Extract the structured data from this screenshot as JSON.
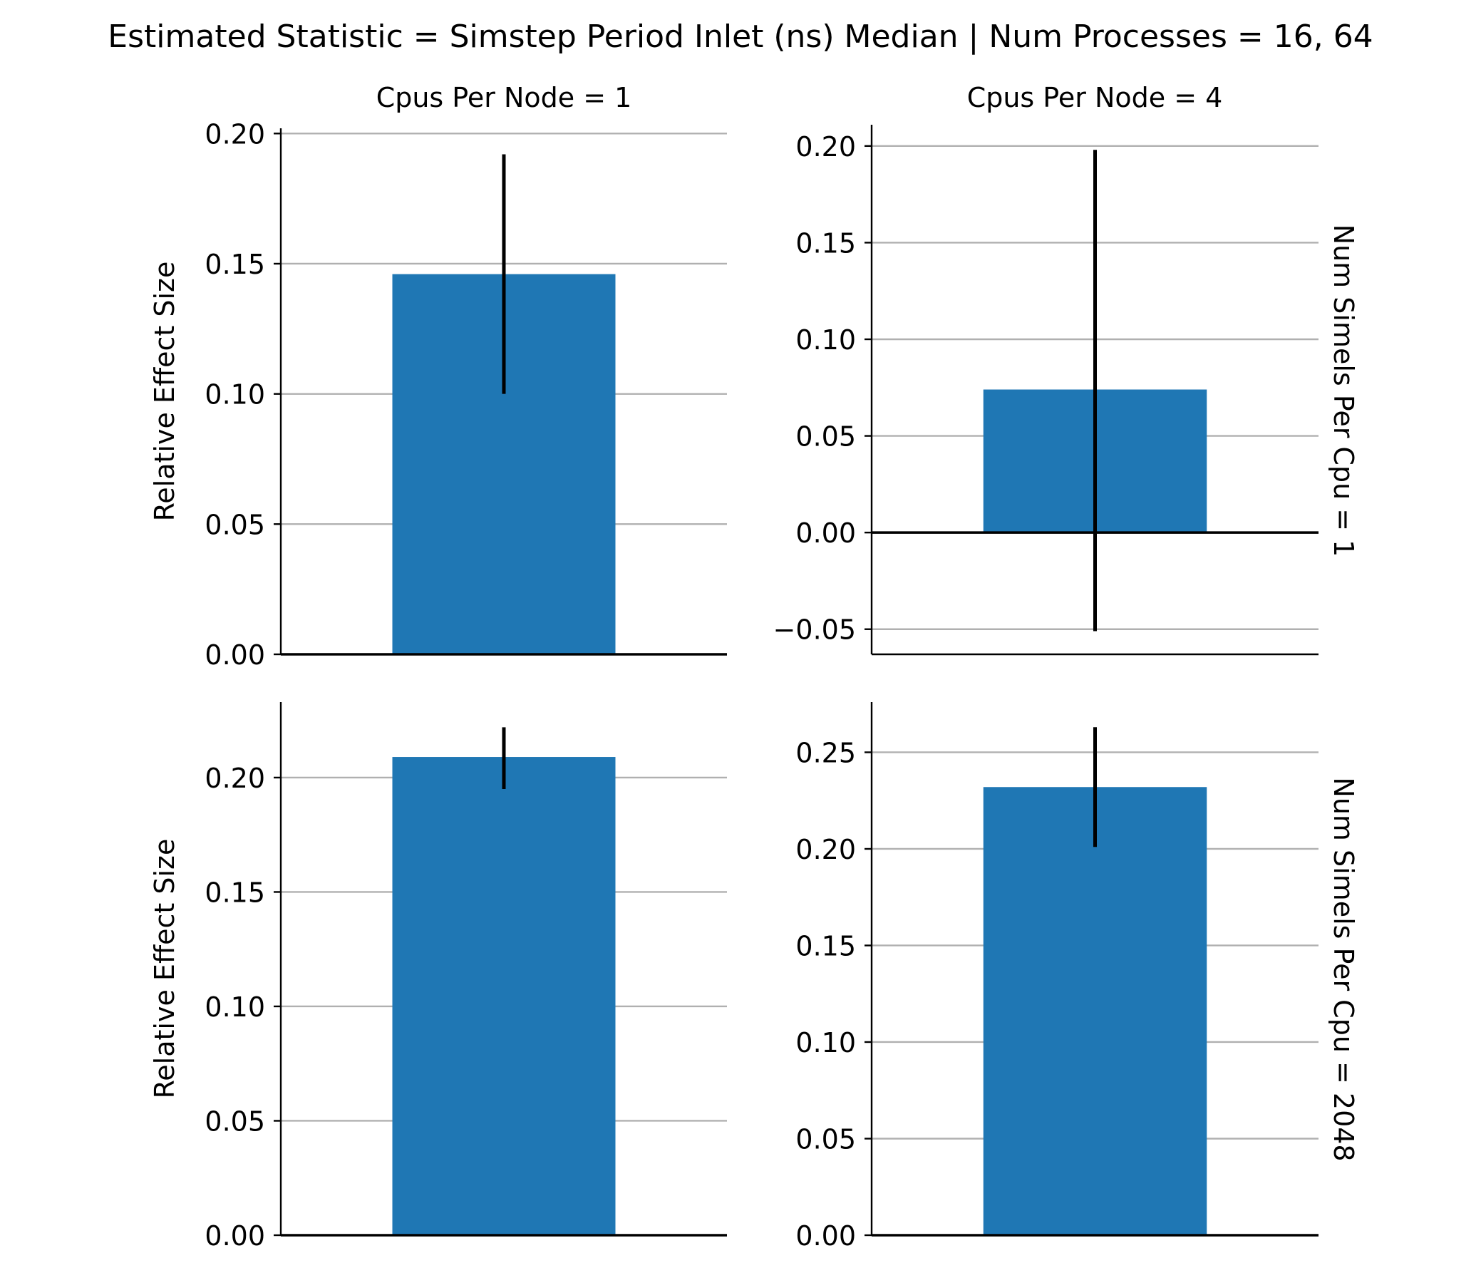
{
  "figure": {
    "title": "Estimated Statistic = Simstep Period Inlet (ns) Median | Num Processes = 16, 64",
    "col_titles": [
      "Cpus Per Node = 1",
      "Cpus Per Node = 4"
    ],
    "row_titles": [
      "Num Simels Per Cpu = 1",
      "Num Simels Per Cpu = 2048"
    ],
    "ylabel": "Relative Effect Size",
    "bar_color": "#1f77b4",
    "grid": true
  },
  "chart_data": [
    {
      "type": "bar",
      "col": "Cpus Per Node = 1",
      "row": "Num Simels Per Cpu = 1",
      "values": [
        0.146
      ],
      "error": [
        [
          0.1,
          0.192
        ]
      ],
      "ylim": [
        0,
        0.202
      ],
      "yticks": [
        0.0,
        0.05,
        0.1,
        0.15,
        0.2
      ],
      "yticklabels": [
        "0.00",
        "0.05",
        "0.10",
        "0.15",
        "0.20"
      ]
    },
    {
      "type": "bar",
      "col": "Cpus Per Node = 4",
      "row": "Num Simels Per Cpu = 1",
      "values": [
        0.074
      ],
      "error": [
        [
          -0.051,
          0.198
        ]
      ],
      "ylim": [
        -0.063,
        0.211
      ],
      "yticks": [
        -0.05,
        0.0,
        0.05,
        0.1,
        0.15,
        0.2
      ],
      "yticklabels": [
        "−0.05",
        "0.00",
        "0.05",
        "0.10",
        "0.15",
        "0.20"
      ]
    },
    {
      "type": "bar",
      "col": "Cpus Per Node = 1",
      "row": "Num Simels Per Cpu = 2048",
      "values": [
        0.209
      ],
      "error": [
        [
          0.195,
          0.222
        ]
      ],
      "ylim": [
        0,
        0.233
      ],
      "yticks": [
        0.0,
        0.05,
        0.1,
        0.15,
        0.2
      ],
      "yticklabels": [
        "0.00",
        "0.05",
        "0.10",
        "0.15",
        "0.20"
      ]
    },
    {
      "type": "bar",
      "col": "Cpus Per Node = 4",
      "row": "Num Simels Per Cpu = 2048",
      "values": [
        0.232
      ],
      "error": [
        [
          0.201,
          0.263
        ]
      ],
      "ylim": [
        0,
        0.276
      ],
      "yticks": [
        0.0,
        0.05,
        0.1,
        0.15,
        0.2,
        0.25
      ],
      "yticklabels": [
        "0.00",
        "0.05",
        "0.10",
        "0.15",
        "0.20",
        "0.25"
      ]
    }
  ]
}
